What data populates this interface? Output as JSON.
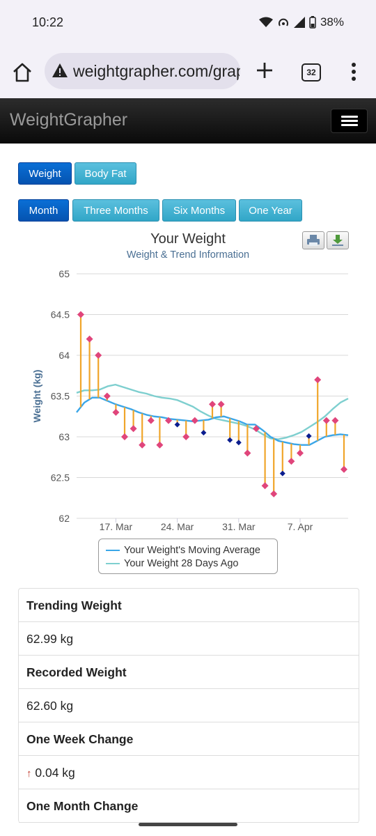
{
  "status": {
    "time": "10:22",
    "battery": "38%"
  },
  "browser": {
    "url": "weightgrapher.com/grap",
    "tab_count": "32"
  },
  "site": {
    "brand": "WeightGrapher"
  },
  "metric_buttons": [
    {
      "label": "Weight",
      "active": true
    },
    {
      "label": "Body Fat",
      "active": false
    }
  ],
  "range_buttons": [
    {
      "label": "Month",
      "active": true
    },
    {
      "label": "Three Months",
      "active": false
    },
    {
      "label": "Six Months",
      "active": false
    },
    {
      "label": "One Year",
      "active": false
    }
  ],
  "chart_data": {
    "type": "line",
    "title": "Your Weight",
    "subtitle": "Weight & Trend Information",
    "ylabel": "Weight (kg)",
    "ylim": [
      62,
      65
    ],
    "yticks": [
      "65",
      "64.5",
      "64",
      "63.5",
      "63",
      "62.5",
      "62"
    ],
    "xticks": [
      "17. Mar",
      "24. Mar",
      "31. Mar",
      "7. Apr"
    ],
    "grid": true,
    "legend_position": "bottom",
    "series": [
      {
        "name": "Your Weight's Moving Average",
        "color": "#3aa6e8",
        "values": [
          63.3,
          63.42,
          63.48,
          63.48,
          63.44,
          63.4,
          63.37,
          63.34,
          63.3,
          63.27,
          63.25,
          63.24,
          63.22,
          63.21,
          63.2,
          63.19,
          63.2,
          63.21,
          63.24,
          63.25,
          63.22,
          63.19,
          63.15,
          63.15,
          63.08,
          63.0,
          62.95,
          62.93,
          62.91,
          62.9,
          62.9,
          62.95,
          63.0,
          63.02,
          63.03,
          63.02
        ]
      },
      {
        "name": "Your Weight 28 Days Ago",
        "color": "#7ecfcf",
        "values": [
          63.54,
          63.57,
          63.57,
          63.58,
          63.62,
          63.64,
          63.61,
          63.58,
          63.55,
          63.53,
          63.5,
          63.48,
          63.47,
          63.45,
          63.41,
          63.37,
          63.31,
          63.26,
          63.22,
          63.2,
          63.18,
          63.16,
          63.13,
          63.09,
          63.03,
          62.98,
          62.97,
          62.99,
          63.02,
          63.06,
          63.12,
          63.18,
          63.25,
          63.34,
          63.42,
          63.47
        ]
      }
    ],
    "weighins": [
      {
        "day": 0,
        "value": 64.5,
        "color": "#e0457b"
      },
      {
        "day": 1,
        "value": 64.2,
        "color": "#e0457b"
      },
      {
        "day": 2,
        "value": 64.0,
        "color": "#e0457b"
      },
      {
        "day": 3,
        "value": 63.5,
        "color": "#e0457b"
      },
      {
        "day": 4,
        "value": 63.3,
        "color": "#e0457b"
      },
      {
        "day": 5,
        "value": 63.0,
        "color": "#e0457b"
      },
      {
        "day": 6,
        "value": 63.1,
        "color": "#e0457b"
      },
      {
        "day": 7,
        "value": 62.9,
        "color": "#e0457b"
      },
      {
        "day": 8,
        "value": 63.2,
        "color": "#e0457b"
      },
      {
        "day": 9,
        "value": 62.9,
        "color": "#e0457b"
      },
      {
        "day": 10,
        "value": 63.2,
        "color": "#e0457b"
      },
      {
        "day": 11,
        "value": 63.15,
        "color": "#0a1d8f"
      },
      {
        "day": 12,
        "value": 63.0,
        "color": "#e0457b"
      },
      {
        "day": 13,
        "value": 63.2,
        "color": "#e0457b"
      },
      {
        "day": 14,
        "value": 63.05,
        "color": "#0a1d8f"
      },
      {
        "day": 15,
        "value": 63.4,
        "color": "#e0457b"
      },
      {
        "day": 16,
        "value": 63.4,
        "color": "#e0457b"
      },
      {
        "day": 17,
        "value": 62.96,
        "color": "#0a1d8f"
      },
      {
        "day": 18,
        "value": 62.93,
        "color": "#0a1d8f"
      },
      {
        "day": 19,
        "value": 62.8,
        "color": "#e0457b"
      },
      {
        "day": 20,
        "value": 63.1,
        "color": "#e0457b"
      },
      {
        "day": 21,
        "value": 62.4,
        "color": "#e0457b"
      },
      {
        "day": 22,
        "value": 62.3,
        "color": "#e0457b"
      },
      {
        "day": 23,
        "value": 62.55,
        "color": "#0a1d8f"
      },
      {
        "day": 24,
        "value": 62.7,
        "color": "#e0457b"
      },
      {
        "day": 25,
        "value": 62.8,
        "color": "#e0457b"
      },
      {
        "day": 26,
        "value": 63.01,
        "color": "#0a1d8f"
      },
      {
        "day": 27,
        "value": 63.7,
        "color": "#e0457b"
      },
      {
        "day": 28,
        "value": 63.2,
        "color": "#e0457b"
      },
      {
        "day": 29,
        "value": 63.2,
        "color": "#e0457b"
      },
      {
        "day": 30,
        "value": 62.6,
        "color": "#e0457b"
      }
    ]
  },
  "stats": [
    {
      "label": "Trending Weight",
      "value": "62.99 kg"
    },
    {
      "label": "Recorded Weight",
      "value": "62.60 kg"
    },
    {
      "label": "One Week Change",
      "value": "0.04 kg",
      "arrow": "↑"
    },
    {
      "label": "One Month Change"
    }
  ]
}
